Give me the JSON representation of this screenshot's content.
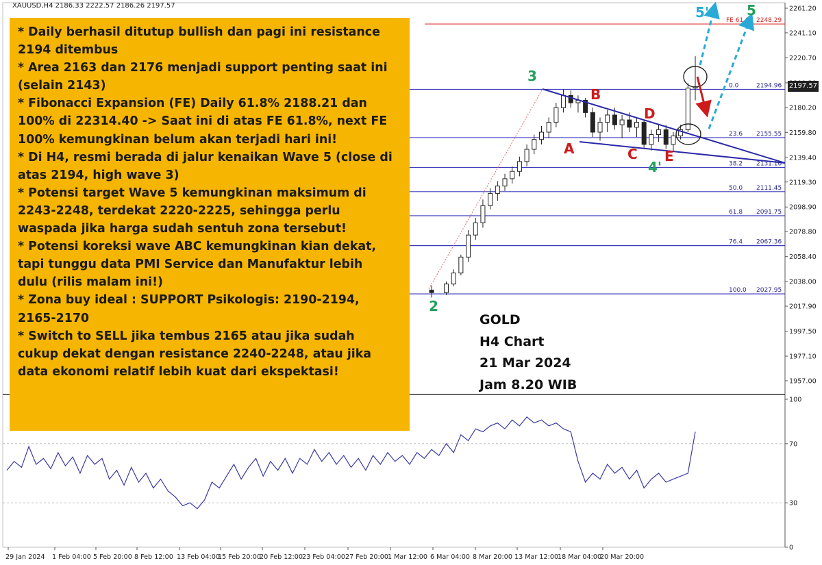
{
  "header": {
    "symbol": "XAUUSD,H4",
    "ohlc": "2186.33 2222.57 2186.26 2197.57"
  },
  "current_price": "2197.57",
  "notes": [
    "* Daily berhasil ditutup bullish dan pagi ini resistance",
    "2194 ditembus",
    "* Area 2163 dan 2176 menjadi support penting saat ini",
    "(selain 2143)",
    "* Fibonacci Expansion  (FE) Daily 61.8% 2188.21 dan",
    "100% di 22314.40 -> Saat ini di atas FE 61.8%, next FE",
    "100% kemungkinan  belum akan terjadi hari ini!",
    "* Di H4, resmi berada di jalur kenaikan Wave 5 (close di",
    "atas 2194, high wave 3)",
    "* Potensi target Wave 5 kemungkinan  maksimum di",
    "2243-2248, terdekat 2220-2225, sehingga perlu",
    "waspada jika harga sudah sentuh zona tersebut!",
    "* Potensi koreksi wave ABC kemungkinan  kian dekat,",
    "tapi tunggu data PMI Service dan Manufaktur  lebih",
    "dulu (rilis malam ini!)",
    "* Zona buy ideal : SUPPORT Psikologis:  2190-2194,",
    "2165-2170",
    "* Switch to SELL jika tembus 2165 atau jika sudah",
    "cukup dekat dengan resistance 2240-2248, atau jika",
    "data ekonomi relatif lebih kuat dari ekspektasi!"
  ],
  "chart_label": {
    "line1": "GOLD",
    "line2": "H4 Chart",
    "line3": "21 Mar 2024",
    "line4": "Jam 8.20 WIB"
  },
  "colors": {
    "note_bg": "#f6b501",
    "fib_line": "#3d3dbd",
    "fe_line": "#e23a3a",
    "wave_green": "#22a05a",
    "abc_red": "#cc1c1c",
    "target_arrow": "#29a9d6",
    "rsi_line": "#3a3aa6",
    "trend_line": "#2a2aa8"
  },
  "chart_data": {
    "type": "line",
    "price_axis": {
      "ticks": [
        "2261.20",
        "2241.10",
        "2220.70",
        "2200.30",
        "2180.20",
        "2159.80",
        "2139.40",
        "2119.30",
        "2098.90",
        "2078.80",
        "2058.40",
        "2038.00",
        "2017.90",
        "1997.50",
        "1977.10",
        "1957.00"
      ],
      "ylim": [
        1946,
        2266
      ]
    },
    "rsi_axis": {
      "ticks": [
        "100",
        "70",
        "30",
        "0"
      ],
      "ylim": [
        0,
        100
      ]
    },
    "time_axis": {
      "ticks": [
        "29 Jan 2024",
        "1 Feb 04:00",
        "5 Feb 20:00",
        "8 Feb 12:00",
        "13 Feb 04:00",
        "15 Feb 20:00",
        "20 Feb 12:00",
        "23 Feb 04:00",
        "27 Feb 20:00",
        "1 Mar 12:00",
        "6 Mar 04:00",
        "8 Mar 20:00",
        "13 Mar 12:00",
        "18 Mar 04:00",
        "20 Mar 20:00"
      ]
    },
    "fib_levels": [
      {
        "level": "0.0",
        "price": "2194.96",
        "value": 2194.96
      },
      {
        "level": "23.6",
        "price": "2155.55",
        "value": 2155.55
      },
      {
        "level": "38.2",
        "price": "2131.16",
        "value": 2131.16
      },
      {
        "level": "50.0",
        "price": "2111.45",
        "value": 2111.45
      },
      {
        "level": "61.8",
        "price": "2091.75",
        "value": 2091.75
      },
      {
        "level": "76.4",
        "price": "2067.36",
        "value": 2067.36
      },
      {
        "level": "100.0",
        "price": "2027.95",
        "value": 2027.95
      }
    ],
    "fe_level": {
      "level": "FE 61.8",
      "price": "2248.29",
      "value": 2248.29
    },
    "wave_labels": [
      {
        "text": "2",
        "color": "green"
      },
      {
        "text": "3",
        "color": "green"
      },
      {
        "text": "4'",
        "color": "green"
      },
      {
        "text": "5'",
        "color": "cyan"
      },
      {
        "text": "5",
        "color": "green"
      },
      {
        "text": "A",
        "color": "red"
      },
      {
        "text": "B",
        "color": "red"
      },
      {
        "text": "C",
        "color": "red"
      },
      {
        "text": "D",
        "color": "red"
      },
      {
        "text": "E",
        "color": "red"
      }
    ],
    "price_series": [
      {
        "t": 58.0,
        "o": 2031,
        "h": 2035,
        "l": 2025,
        "c": 2029
      },
      {
        "t": 60.0,
        "o": 2029,
        "h": 2038,
        "l": 2027,
        "c": 2036
      },
      {
        "t": 61.0,
        "o": 2036,
        "h": 2048,
        "l": 2034,
        "c": 2045
      },
      {
        "t": 62.0,
        "o": 2045,
        "h": 2060,
        "l": 2043,
        "c": 2058
      },
      {
        "t": 63.0,
        "o": 2058,
        "h": 2080,
        "l": 2054,
        "c": 2076
      },
      {
        "t": 64.0,
        "o": 2076,
        "h": 2090,
        "l": 2072,
        "c": 2086
      },
      {
        "t": 65.0,
        "o": 2086,
        "h": 2105,
        "l": 2082,
        "c": 2100
      },
      {
        "t": 66.0,
        "o": 2100,
        "h": 2114,
        "l": 2097,
        "c": 2110
      },
      {
        "t": 67.0,
        "o": 2110,
        "h": 2120,
        "l": 2104,
        "c": 2116
      },
      {
        "t": 68.0,
        "o": 2116,
        "h": 2126,
        "l": 2112,
        "c": 2122
      },
      {
        "t": 69.0,
        "o": 2122,
        "h": 2132,
        "l": 2118,
        "c": 2128
      },
      {
        "t": 70.0,
        "o": 2128,
        "h": 2140,
        "l": 2124,
        "c": 2136
      },
      {
        "t": 71.0,
        "o": 2136,
        "h": 2150,
        "l": 2132,
        "c": 2146
      },
      {
        "t": 72.0,
        "o": 2146,
        "h": 2158,
        "l": 2142,
        "c": 2154
      },
      {
        "t": 73.0,
        "o": 2154,
        "h": 2165,
        "l": 2150,
        "c": 2160
      },
      {
        "t": 74.0,
        "o": 2160,
        "h": 2172,
        "l": 2155,
        "c": 2168
      },
      {
        "t": 75.0,
        "o": 2168,
        "h": 2184,
        "l": 2164,
        "c": 2180
      },
      {
        "t": 76.0,
        "o": 2180,
        "h": 2195,
        "l": 2176,
        "c": 2190
      },
      {
        "t": 77.0,
        "o": 2190,
        "h": 2194,
        "l": 2180,
        "c": 2184
      },
      {
        "t": 78.0,
        "o": 2184,
        "h": 2190,
        "l": 2176,
        "c": 2186
      },
      {
        "t": 79.0,
        "o": 2186,
        "h": 2188,
        "l": 2172,
        "c": 2176
      },
      {
        "t": 80.0,
        "o": 2176,
        "h": 2180,
        "l": 2156,
        "c": 2160
      },
      {
        "t": 81.0,
        "o": 2160,
        "h": 2172,
        "l": 2153,
        "c": 2168
      },
      {
        "t": 82.0,
        "o": 2168,
        "h": 2178,
        "l": 2160,
        "c": 2174
      },
      {
        "t": 83.0,
        "o": 2174,
        "h": 2180,
        "l": 2162,
        "c": 2166
      },
      {
        "t": 84.0,
        "o": 2166,
        "h": 2174,
        "l": 2155,
        "c": 2170
      },
      {
        "t": 85.0,
        "o": 2170,
        "h": 2176,
        "l": 2160,
        "c": 2164
      },
      {
        "t": 86.0,
        "o": 2164,
        "h": 2172,
        "l": 2156,
        "c": 2168
      },
      {
        "t": 87.0,
        "o": 2168,
        "h": 2170,
        "l": 2146,
        "c": 2150
      },
      {
        "t": 88.0,
        "o": 2150,
        "h": 2162,
        "l": 2145,
        "c": 2158
      },
      {
        "t": 89.0,
        "o": 2158,
        "h": 2166,
        "l": 2152,
        "c": 2162
      },
      {
        "t": 90.0,
        "o": 2162,
        "h": 2166,
        "l": 2146,
        "c": 2150
      },
      {
        "t": 91.0,
        "o": 2150,
        "h": 2160,
        "l": 2144,
        "c": 2157
      },
      {
        "t": 92.0,
        "o": 2157,
        "h": 2166,
        "l": 2154,
        "c": 2162
      },
      {
        "t": 93.0,
        "o": 2162,
        "h": 2200,
        "l": 2160,
        "c": 2196
      },
      {
        "t": 94.0,
        "o": 2196,
        "h": 2222,
        "l": 2186,
        "c": 2197
      }
    ],
    "rsi_series": [
      {
        "t": 0.0,
        "v": 52
      },
      {
        "t": 1.0,
        "v": 58
      },
      {
        "t": 2.0,
        "v": 54
      },
      {
        "t": 3.0,
        "v": 68
      },
      {
        "t": 4.0,
        "v": 56
      },
      {
        "t": 5.0,
        "v": 60
      },
      {
        "t": 6.0,
        "v": 53
      },
      {
        "t": 7.0,
        "v": 64
      },
      {
        "t": 8.0,
        "v": 55
      },
      {
        "t": 9.0,
        "v": 61
      },
      {
        "t": 10.0,
        "v": 50
      },
      {
        "t": 11.0,
        "v": 62
      },
      {
        "t": 12.0,
        "v": 56
      },
      {
        "t": 13.0,
        "v": 60
      },
      {
        "t": 14.0,
        "v": 46
      },
      {
        "t": 15.0,
        "v": 52
      },
      {
        "t": 16.0,
        "v": 42
      },
      {
        "t": 17.0,
        "v": 54
      },
      {
        "t": 18.0,
        "v": 44
      },
      {
        "t": 19.0,
        "v": 50
      },
      {
        "t": 20.0,
        "v": 40
      },
      {
        "t": 21.0,
        "v": 46
      },
      {
        "t": 22.0,
        "v": 38
      },
      {
        "t": 23.0,
        "v": 34
      },
      {
        "t": 24.0,
        "v": 28
      },
      {
        "t": 25.0,
        "v": 30
      },
      {
        "t": 26.0,
        "v": 26
      },
      {
        "t": 27.0,
        "v": 32
      },
      {
        "t": 28.0,
        "v": 44
      },
      {
        "t": 29.0,
        "v": 40
      },
      {
        "t": 30.0,
        "v": 48
      },
      {
        "t": 31.0,
        "v": 56
      },
      {
        "t": 32.0,
        "v": 46
      },
      {
        "t": 33.0,
        "v": 54
      },
      {
        "t": 34.0,
        "v": 60
      },
      {
        "t": 35.0,
        "v": 48
      },
      {
        "t": 36.0,
        "v": 58
      },
      {
        "t": 37.0,
        "v": 52
      },
      {
        "t": 38.0,
        "v": 60
      },
      {
        "t": 39.0,
        "v": 50
      },
      {
        "t": 40.0,
        "v": 60
      },
      {
        "t": 41.0,
        "v": 56
      },
      {
        "t": 42.0,
        "v": 66
      },
      {
        "t": 43.0,
        "v": 58
      },
      {
        "t": 44.0,
        "v": 64
      },
      {
        "t": 45.0,
        "v": 56
      },
      {
        "t": 46.0,
        "v": 62
      },
      {
        "t": 47.0,
        "v": 54
      },
      {
        "t": 48.0,
        "v": 60
      },
      {
        "t": 49.0,
        "v": 52
      },
      {
        "t": 50.0,
        "v": 62
      },
      {
        "t": 51.0,
        "v": 56
      },
      {
        "t": 52.0,
        "v": 64
      },
      {
        "t": 53.0,
        "v": 58
      },
      {
        "t": 54.0,
        "v": 62
      },
      {
        "t": 55.0,
        "v": 56
      },
      {
        "t": 56.0,
        "v": 64
      },
      {
        "t": 57.0,
        "v": 60
      },
      {
        "t": 58.0,
        "v": 66
      },
      {
        "t": 59.0,
        "v": 62
      },
      {
        "t": 60.0,
        "v": 70
      },
      {
        "t": 61.0,
        "v": 64
      },
      {
        "t": 62.0,
        "v": 76
      },
      {
        "t": 63.0,
        "v": 72
      },
      {
        "t": 64.0,
        "v": 80
      },
      {
        "t": 65.0,
        "v": 78
      },
      {
        "t": 66.0,
        "v": 82
      },
      {
        "t": 67.0,
        "v": 84
      },
      {
        "t": 68.0,
        "v": 80
      },
      {
        "t": 69.0,
        "v": 86
      },
      {
        "t": 70.0,
        "v": 82
      },
      {
        "t": 71.0,
        "v": 88
      },
      {
        "t": 72.0,
        "v": 84
      },
      {
        "t": 73.0,
        "v": 86
      },
      {
        "t": 74.0,
        "v": 82
      },
      {
        "t": 75.0,
        "v": 84
      },
      {
        "t": 76.0,
        "v": 80
      },
      {
        "t": 77.0,
        "v": 78
      },
      {
        "t": 78.0,
        "v": 58
      },
      {
        "t": 79.0,
        "v": 44
      },
      {
        "t": 80.0,
        "v": 50
      },
      {
        "t": 81.0,
        "v": 46
      },
      {
        "t": 82.0,
        "v": 56
      },
      {
        "t": 83.0,
        "v": 50
      },
      {
        "t": 84.0,
        "v": 54
      },
      {
        "t": 85.0,
        "v": 46
      },
      {
        "t": 86.0,
        "v": 52
      },
      {
        "t": 87.0,
        "v": 40
      },
      {
        "t": 88.0,
        "v": 46
      },
      {
        "t": 89.0,
        "v": 50
      },
      {
        "t": 90.0,
        "v": 44
      },
      {
        "t": 91.0,
        "v": 46
      },
      {
        "t": 92.0,
        "v": 48
      },
      {
        "t": 93.0,
        "v": 50
      },
      {
        "t": 94.0,
        "v": 78
      }
    ]
  }
}
